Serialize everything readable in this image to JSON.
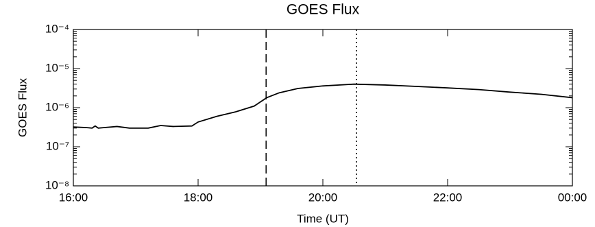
{
  "chart_data": {
    "type": "line",
    "title": "GOES Flux",
    "x_label": "Time (UT)",
    "y_label": "GOES Flux",
    "log_y": true,
    "x": [
      16.0,
      16.2,
      16.3,
      16.35,
      16.4,
      16.5,
      16.7,
      16.9,
      17.2,
      17.4,
      17.6,
      17.9,
      18.0,
      18.3,
      18.6,
      18.9,
      19.1,
      19.3,
      19.6,
      20.0,
      20.5,
      21.0,
      21.5,
      22.0,
      22.5,
      23.0,
      23.5,
      24.0
    ],
    "series": [
      {
        "name": "GOES Flux",
        "color": "#000000",
        "values": [
          3.2e-07,
          3.1e-07,
          3e-07,
          3.4e-07,
          3e-07,
          3.1e-07,
          3.3e-07,
          3e-07,
          3e-07,
          3.5e-07,
          3.3e-07,
          3.4e-07,
          4.3e-07,
          6e-07,
          7.8e-07,
          1.1e-06,
          1.8e-06,
          2.4e-06,
          3.1e-06,
          3.6e-06,
          4e-06,
          3.8e-06,
          3.5e-06,
          3.2e-06,
          2.9e-06,
          2.5e-06,
          2.2e-06,
          1.8e-06
        ]
      }
    ],
    "markers": [
      {
        "x": 19.09,
        "style": "dashed"
      },
      {
        "x": 20.54,
        "style": "dotted"
      }
    ],
    "xlim": [
      16,
      24
    ],
    "xticks": [
      {
        "value": 16,
        "label": "16:00"
      },
      {
        "value": 18,
        "label": "18:00"
      },
      {
        "value": 20,
        "label": "20:00"
      },
      {
        "value": 22,
        "label": "22:00"
      },
      {
        "value": 24,
        "label": "00:00"
      }
    ],
    "ylim": [
      1e-08,
      0.0001
    ],
    "yticks": [
      {
        "value": 1e-08,
        "label": "10⁻⁸"
      },
      {
        "value": 1e-07,
        "label": "10⁻⁷"
      },
      {
        "value": 1e-06,
        "label": "10⁻⁶"
      },
      {
        "value": 1e-05,
        "label": "10⁻⁵"
      },
      {
        "value": 0.0001,
        "label": "10⁻⁴"
      }
    ]
  }
}
